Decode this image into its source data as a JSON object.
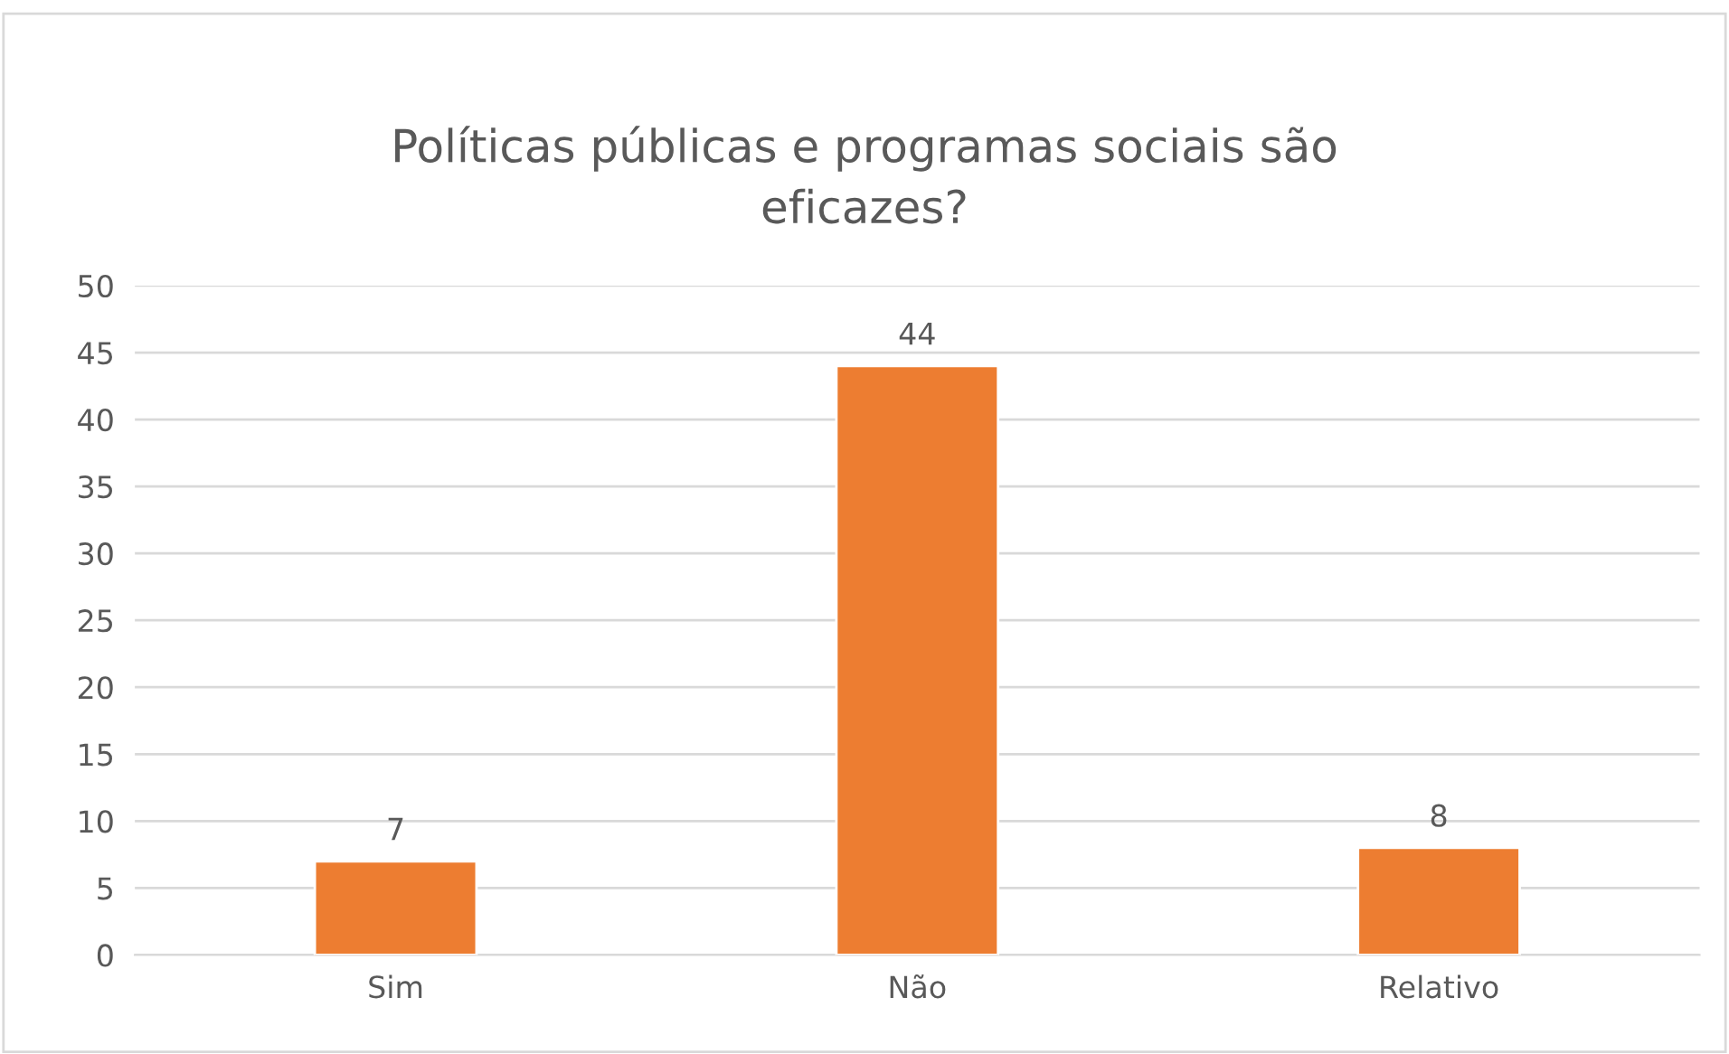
{
  "chart_data": {
    "type": "bar",
    "title": "Políticas públicas e programas sociais são eficazes?",
    "categories": [
      "Sim",
      "Não",
      "Relativo"
    ],
    "values": [
      7,
      44,
      8
    ],
    "color": "#ed7d31",
    "ylim": [
      0,
      50
    ],
    "yticks": [
      0,
      5,
      10,
      15,
      20,
      25,
      30,
      35,
      40,
      45,
      50
    ],
    "grid": "y",
    "data_labels": true,
    "legend": false
  }
}
